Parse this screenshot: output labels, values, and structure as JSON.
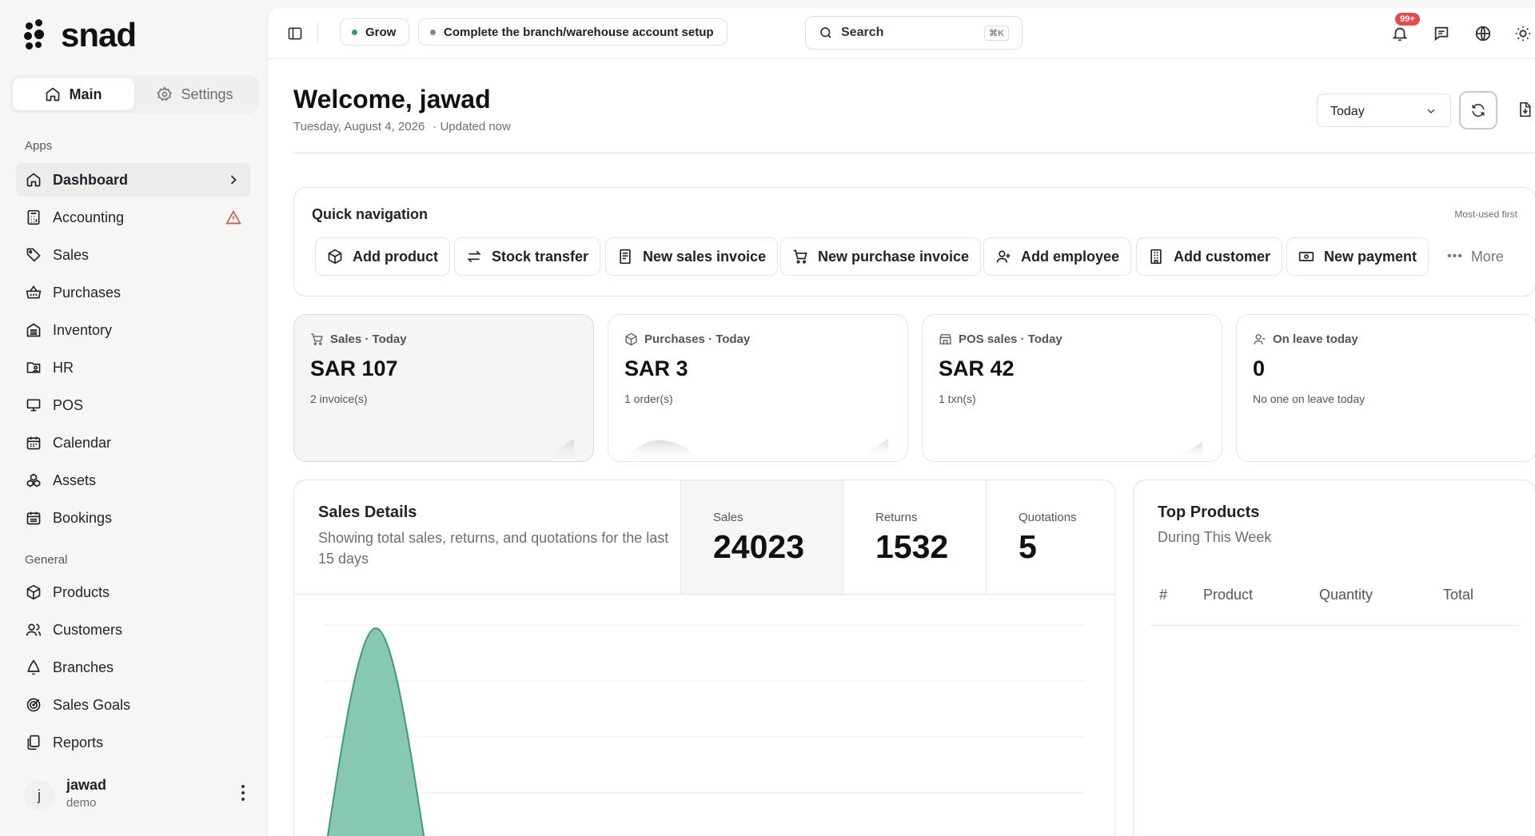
{
  "brand": {
    "name": "snad"
  },
  "sidebar": {
    "tabs": [
      {
        "label": "Main",
        "icon": "home-icon",
        "active": true
      },
      {
        "label": "Settings",
        "icon": "gear-icon",
        "active": false
      }
    ],
    "apps_label": "Apps",
    "apps": [
      {
        "label": "Dashboard",
        "icon": "home-icon",
        "active": true
      },
      {
        "label": "Accounting",
        "icon": "calculator-icon",
        "warning": true
      },
      {
        "label": "Sales",
        "icon": "tag-icon"
      },
      {
        "label": "Purchases",
        "icon": "basket-icon"
      },
      {
        "label": "Inventory",
        "icon": "warehouse-icon"
      },
      {
        "label": "HR",
        "icon": "hr-icon"
      },
      {
        "label": "POS",
        "icon": "monitor-icon"
      },
      {
        "label": "Calendar",
        "icon": "calendar-icon"
      },
      {
        "label": "Assets",
        "icon": "assets-icon"
      },
      {
        "label": "Bookings",
        "icon": "calendar-check-icon"
      }
    ],
    "general_label": "General",
    "general": [
      {
        "label": "Products",
        "icon": "box-icon"
      },
      {
        "label": "Customers",
        "icon": "users-icon"
      },
      {
        "label": "Branches",
        "icon": "branch-icon"
      },
      {
        "label": "Sales Goals",
        "icon": "target-icon"
      },
      {
        "label": "Reports",
        "icon": "reports-icon"
      }
    ],
    "user": {
      "initial": "j",
      "name": "jawad",
      "sub": "demo"
    }
  },
  "topbar": {
    "grow_label": "Grow",
    "setup_label": "Complete the branch/warehouse account setup",
    "search_label": "Search",
    "search_shortcut": "⌘K",
    "notif_badge": "99+"
  },
  "header": {
    "welcome": "Welcome, jawad",
    "date": "Tuesday, August 4, 2026",
    "updated": "· Updated now",
    "period": "Today"
  },
  "quick_nav": {
    "title": "Quick navigation",
    "hint": "Most-used first",
    "items": [
      {
        "label": "Add product",
        "icon": "box-icon"
      },
      {
        "label": "Stock transfer",
        "icon": "transfer-icon"
      },
      {
        "label": "New sales invoice",
        "icon": "invoice-icon"
      },
      {
        "label": "New purchase invoice",
        "icon": "cart-icon"
      },
      {
        "label": "Add employee",
        "icon": "user-plus-icon"
      },
      {
        "label": "Add customer",
        "icon": "building-icon"
      },
      {
        "label": "New payment",
        "icon": "cash-icon"
      }
    ],
    "more_label": "More"
  },
  "stats": [
    {
      "title": "Sales · Today",
      "value": "SAR 107",
      "sub": "2 invoice(s)",
      "icon": "cart-icon"
    },
    {
      "title": "Purchases · Today",
      "value": "SAR 3",
      "sub": "1 order(s)",
      "icon": "box-icon"
    },
    {
      "title": "POS sales · Today",
      "value": "SAR 42",
      "sub": "1 txn(s)",
      "icon": "store-icon"
    },
    {
      "title": "On leave today",
      "value": "0",
      "sub": "No one on leave today",
      "icon": "user-icon"
    }
  ],
  "sales_details": {
    "title": "Sales Details",
    "subtitle": "Showing total sales, returns, and quotations for the last 15 days",
    "metrics": [
      {
        "label": "Sales",
        "value": "24023"
      },
      {
        "label": "Returns",
        "value": "1532"
      },
      {
        "label": "Quotations",
        "value": "5"
      }
    ]
  },
  "top_products": {
    "title": "Top Products",
    "subtitle": "During This Week",
    "columns": [
      "#",
      "Product",
      "Quantity",
      "Total"
    ]
  },
  "colors": {
    "accent": "#2f9e6b",
    "chart_fill": "#87c8b0",
    "chart_stroke": "#3f9a78",
    "warning": "#d9534f"
  }
}
